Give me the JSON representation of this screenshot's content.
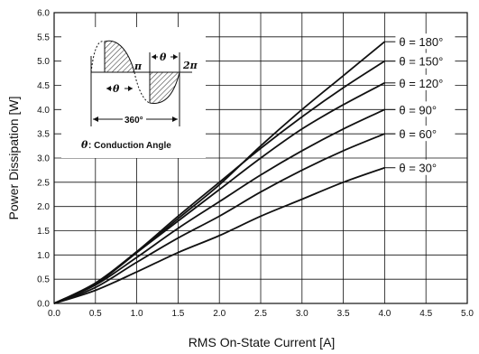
{
  "chart_data": {
    "type": "line",
    "xlabel": "RMS On-State Current [A]",
    "ylabel": "Power Dissipation [W]",
    "xlim": [
      0,
      5
    ],
    "ylim": [
      0,
      6
    ],
    "xticks": [
      "0.0",
      "0.5",
      "1.0",
      "1.5",
      "2.0",
      "2.5",
      "3.0",
      "3.5",
      "4.0",
      "4.5",
      "5.0"
    ],
    "yticks": [
      "0.0",
      "0.5",
      "1.0",
      "1.5",
      "2.0",
      "2.5",
      "3.0",
      "3.5",
      "4.0",
      "4.5",
      "5.0",
      "5.5",
      "6.0"
    ],
    "grid": true,
    "legend_placement": "right",
    "x": [
      0,
      0.5,
      1.0,
      1.5,
      2.0,
      2.5,
      3.0,
      3.5,
      4.0
    ],
    "series": [
      {
        "name": "θ = 180°",
        "values": [
          0,
          0.4,
          1.05,
          1.75,
          2.45,
          3.25,
          4.0,
          4.7,
          5.4
        ]
      },
      {
        "name": "θ = 150°",
        "values": [
          0,
          0.42,
          1.07,
          1.8,
          2.5,
          3.2,
          3.85,
          4.45,
          5.0
        ]
      },
      {
        "name": "θ = 120°",
        "values": [
          0,
          0.42,
          1.05,
          1.7,
          2.35,
          3.0,
          3.6,
          4.1,
          4.55
        ]
      },
      {
        "name": "θ = 90°",
        "values": [
          0,
          0.38,
          0.95,
          1.55,
          2.1,
          2.65,
          3.15,
          3.6,
          4.0
        ]
      },
      {
        "name": "θ = 60°",
        "values": [
          0,
          0.33,
          0.85,
          1.35,
          1.8,
          2.3,
          2.75,
          3.15,
          3.5
        ]
      },
      {
        "name": "θ = 30°",
        "values": [
          0,
          0.27,
          0.65,
          1.05,
          1.4,
          1.8,
          2.15,
          2.5,
          2.8
        ]
      }
    ],
    "legend_values_y": [
      5.4,
      5.0,
      4.55,
      4.0,
      3.5,
      2.8
    ],
    "inset": {
      "pi_label": "π",
      "two_pi_label": "2π",
      "theta_label": "θ",
      "full_cycle_label": "360°",
      "conduction_label": ": Conduction Angle"
    },
    "colors": {
      "line": "#111111",
      "grid": "#111111",
      "hatch": "#555555"
    }
  }
}
